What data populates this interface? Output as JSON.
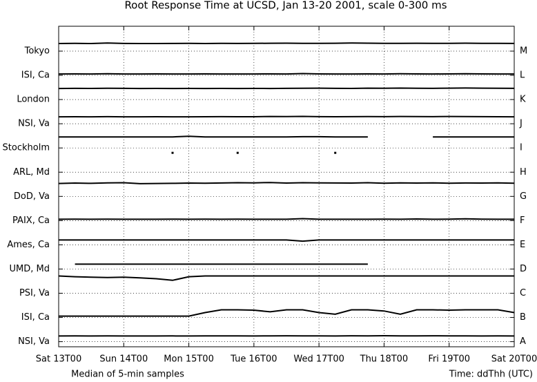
{
  "chart_data": {
    "type": "line",
    "title": "Root Response Time at UCSD, Jan 13-20 2001, scale 0-300 ms",
    "note": "Median of 5-min samples",
    "xlabel": "Time: ddThh (UTC)",
    "x": [
      0,
      6,
      12,
      18,
      24,
      30,
      36,
      42,
      48,
      54,
      60,
      66,
      72,
      78,
      84,
      90,
      96,
      102,
      108,
      114,
      120,
      126,
      132,
      138,
      144,
      150,
      156,
      162,
      168
    ],
    "xlim": [
      0,
      168
    ],
    "xticks": [
      {
        "value": 0,
        "label": "Sat 13T00"
      },
      {
        "value": 24,
        "label": "Sun 14T00"
      },
      {
        "value": 48,
        "label": "Mon 15T00"
      },
      {
        "value": 72,
        "label": "Tue 16T00"
      },
      {
        "value": 96,
        "label": "Wed 17T00"
      },
      {
        "value": 120,
        "label": "Thu 18T00"
      },
      {
        "value": 144,
        "label": "Fri 19T00"
      },
      {
        "value": 168,
        "label": "Sat 20T00"
      }
    ],
    "ylim": [
      0,
      300
    ],
    "grid": true,
    "color": "#000000",
    "series": [
      {
        "name": "Tokyo",
        "letter": "M",
        "values": [
          94,
          96,
          94,
          100,
          95,
          94,
          94,
          95,
          96,
          94,
          97,
          95,
          96,
          98,
          99,
          97,
          96,
          98,
          100,
          99,
          97,
          96,
          98,
          96,
          97,
          99,
          97,
          96,
          95
        ]
      },
      {
        "name": "ISI, Ca",
        "letter": "L",
        "values": [
          17,
          18,
          17,
          20,
          17,
          17,
          18,
          17,
          17,
          18,
          17,
          17,
          17,
          18,
          17,
          22,
          18,
          17,
          17,
          18,
          17,
          19,
          18,
          17,
          18,
          20,
          18,
          17,
          17
        ]
      },
      {
        "name": "London",
        "letter": "K",
        "values": [
          137,
          139,
          138,
          140,
          139,
          137,
          138,
          137,
          138,
          137,
          138,
          137,
          138,
          137,
          139,
          140,
          141,
          139,
          138,
          141,
          140,
          142,
          140,
          139,
          141,
          143,
          141,
          140,
          139
        ]
      },
      {
        "name": "NSI, Va",
        "letter": "J",
        "values": [
          86,
          87,
          86,
          88,
          86,
          86,
          87,
          86,
          86,
          87,
          88,
          87,
          87,
          90,
          89,
          91,
          88,
          87,
          88,
          89,
          88,
          90,
          89,
          88,
          90,
          89,
          88,
          87,
          86
        ]
      },
      {
        "name": "Stockholm",
        "letter": "I",
        "values": [
          137,
          137,
          137,
          137,
          137,
          137,
          137,
          137,
          145,
          137,
          137,
          137,
          137,
          137,
          137,
          140,
          140,
          137,
          137,
          137,
          null,
          null,
          null,
          137,
          137,
          137,
          137,
          137,
          137
        ]
      },
      {
        "name": "ARL, Md",
        "letter": "H",
        "values": [
          null,
          null,
          null,
          null,
          null,
          null,
          null,
          240,
          null,
          null,
          null,
          240,
          null,
          null,
          null,
          null,
          null,
          240,
          null,
          null,
          null,
          null,
          null,
          null,
          null,
          null,
          null,
          null,
          null
        ]
      },
      {
        "name": "DoD, Va",
        "letter": "G",
        "values": [
          160,
          165,
          162,
          168,
          170,
          158,
          160,
          162,
          165,
          163,
          166,
          170,
          168,
          172,
          165,
          170,
          168,
          166,
          165,
          170,
          164,
          167,
          165,
          168,
          163,
          166,
          165,
          168,
          164
        ]
      },
      {
        "name": "PAIX, Ca",
        "letter": "F",
        "values": [
          17,
          18,
          17,
          18,
          17,
          17,
          17,
          18,
          17,
          18,
          17,
          18,
          17,
          17,
          17,
          24,
          17,
          17,
          17,
          17,
          18,
          17,
          20,
          17,
          18,
          22,
          18,
          17,
          17
        ]
      },
      {
        "name": "Ames, Ca",
        "letter": "E",
        "values": [
          60,
          60,
          60,
          60,
          60,
          60,
          60,
          60,
          60,
          60,
          60,
          60,
          60,
          60,
          60,
          45,
          60,
          60,
          60,
          60,
          60,
          60,
          60,
          60,
          60,
          60,
          60,
          60,
          60
        ]
      },
      {
        "name": "UMD, Md",
        "letter": "D",
        "values": [
          null,
          60,
          60,
          60,
          60,
          60,
          60,
          60,
          60,
          60,
          60,
          60,
          60,
          60,
          60,
          60,
          60,
          60,
          60,
          60,
          null,
          null,
          null,
          null,
          null,
          null,
          null,
          null,
          null
        ]
      },
      {
        "name": "PSI, Va",
        "letter": "C",
        "values": [
          214,
          205,
          200,
          195,
          200,
          190,
          180,
          160,
          205,
          214,
          214,
          214,
          214,
          214,
          214,
          214,
          214,
          214,
          214,
          214,
          214,
          214,
          214,
          214,
          214,
          214,
          214,
          214,
          214
        ]
      },
      {
        "name": "ISI, Ca",
        "letter": "B",
        "values": [
          17,
          17,
          17,
          17,
          17,
          17,
          17,
          17,
          17,
          60,
          95,
          95,
          90,
          70,
          95,
          95,
          60,
          40,
          95,
          95,
          80,
          40,
          95,
          95,
          90,
          95,
          95,
          95,
          60
        ]
      },
      {
        "name": "NSI, Va",
        "letter": "A",
        "values": [
          70,
          71,
          70,
          72,
          70,
          70,
          70,
          71,
          70,
          71,
          72,
          71,
          70,
          72,
          73,
          71,
          72,
          70,
          73,
          71,
          74,
          72,
          71,
          73,
          72,
          71,
          70,
          71,
          70
        ]
      }
    ]
  }
}
